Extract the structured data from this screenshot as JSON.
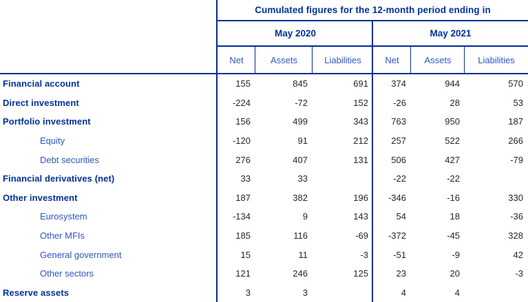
{
  "header": {
    "title": "Cumulated figures for the 12-month period ending in",
    "groups": [
      {
        "label": "May 2020"
      },
      {
        "label": "May 2021"
      }
    ],
    "columns": [
      "Net",
      "Assets",
      "Liabilities",
      "Net",
      "Assets",
      "Liabilities"
    ]
  },
  "rows": [
    {
      "label": "Financial account",
      "style": "bold",
      "values": [
        "155",
        "845",
        "691",
        "374",
        "944",
        "570"
      ]
    },
    {
      "label": "Direct investment",
      "style": "bold",
      "values": [
        "-224",
        "-72",
        "152",
        "-26",
        "28",
        "53"
      ]
    },
    {
      "label": "Portfolio investment",
      "style": "bold",
      "values": [
        "156",
        "499",
        "343",
        "763",
        "950",
        "187"
      ]
    },
    {
      "label": "Equity",
      "style": "sub",
      "values": [
        "-120",
        "91",
        "212",
        "257",
        "522",
        "266"
      ]
    },
    {
      "label": "Debt securities",
      "style": "sub",
      "values": [
        "276",
        "407",
        "131",
        "506",
        "427",
        "-79"
      ]
    },
    {
      "label": "Financial derivatives (net)",
      "style": "bold",
      "values": [
        "33",
        "33",
        "",
        "-22",
        "-22",
        ""
      ]
    },
    {
      "label": "Other investment",
      "style": "bold",
      "values": [
        "187",
        "382",
        "196",
        "-346",
        "-16",
        "330"
      ]
    },
    {
      "label": "Eurosystem",
      "style": "sub",
      "values": [
        "-134",
        "9",
        "143",
        "54",
        "18",
        "-36"
      ]
    },
    {
      "label": "Other MFIs",
      "style": "sub",
      "values": [
        "185",
        "116",
        "-69",
        "-372",
        "-45",
        "328"
      ]
    },
    {
      "label": "General government",
      "style": "sub",
      "values": [
        "15",
        "11",
        "-3",
        "-51",
        "-9",
        "42"
      ]
    },
    {
      "label": "Other sectors",
      "style": "sub",
      "values": [
        "121",
        "246",
        "125",
        "23",
        "20",
        "-3"
      ]
    },
    {
      "label": "Reserve assets",
      "style": "bold",
      "values": [
        "3",
        "3",
        "",
        "4",
        "4",
        ""
      ]
    }
  ],
  "colors": {
    "navy_border": "#002d8f",
    "bold_label_blue": "#003299",
    "sub_label_blue": "#2d55c4",
    "number_text": "#262626",
    "background": "#ffffff"
  },
  "chart_data": {
    "type": "table",
    "title": "Cumulated figures for the 12-month period ending in",
    "column_groups": [
      "May 2020",
      "May 2021"
    ],
    "columns": [
      "May 2020 Net",
      "May 2020 Assets",
      "May 2020 Liabilities",
      "May 2021 Net",
      "May 2021 Assets",
      "May 2021 Liabilities"
    ],
    "rows": [
      {
        "label": "Financial account",
        "values": [
          155,
          845,
          691,
          374,
          944,
          570
        ]
      },
      {
        "label": "Direct investment",
        "values": [
          -224,
          -72,
          152,
          -26,
          28,
          53
        ]
      },
      {
        "label": "Portfolio investment",
        "values": [
          156,
          499,
          343,
          763,
          950,
          187
        ]
      },
      {
        "label": "Equity",
        "values": [
          -120,
          91,
          212,
          257,
          522,
          266
        ]
      },
      {
        "label": "Debt securities",
        "values": [
          276,
          407,
          131,
          506,
          427,
          -79
        ]
      },
      {
        "label": "Financial derivatives (net)",
        "values": [
          33,
          33,
          null,
          -22,
          -22,
          null
        ]
      },
      {
        "label": "Other investment",
        "values": [
          187,
          382,
          196,
          -346,
          -16,
          330
        ]
      },
      {
        "label": "Eurosystem",
        "values": [
          -134,
          9,
          143,
          54,
          18,
          -36
        ]
      },
      {
        "label": "Other MFIs",
        "values": [
          185,
          116,
          -69,
          -372,
          -45,
          328
        ]
      },
      {
        "label": "General government",
        "values": [
          15,
          11,
          -3,
          -51,
          -9,
          42
        ]
      },
      {
        "label": "Other sectors",
        "values": [
          121,
          246,
          125,
          23,
          20,
          -3
        ]
      },
      {
        "label": "Reserve assets",
        "values": [
          3,
          3,
          null,
          4,
          4,
          null
        ]
      }
    ]
  }
}
